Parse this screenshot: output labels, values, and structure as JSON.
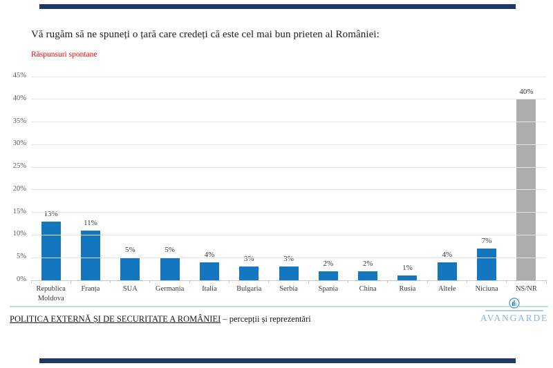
{
  "header": {
    "title": "Vă rugăm să ne spuneți o țară care credeți că este cel mai bun prieten al României:",
    "subtitle": "Răspunsuri spontane"
  },
  "chart_data": {
    "type": "bar",
    "title": "Vă rugăm să ne spuneți o țară care credeți că este cel mai bun prieten al României:",
    "subtitle": "Răspunsuri spontane",
    "categories": [
      "Republica Moldova",
      "Franța",
      "SUA",
      "Germania",
      "Italia",
      "Bulgaria",
      "Serbia",
      "Spania",
      "China",
      "Rusia",
      "Altele",
      "Niciuna",
      "NS/NR"
    ],
    "values": [
      13,
      11,
      5,
      5,
      4,
      3,
      3,
      2,
      2,
      1,
      4,
      7,
      40
    ],
    "data_labels": [
      "13%",
      "11%",
      "5%",
      "5%",
      "4%",
      "3%",
      "3%",
      "2%",
      "2%",
      "1%",
      "4%",
      "7%",
      "40%"
    ],
    "xlabel": "",
    "ylabel": "",
    "ylim": [
      0,
      45
    ],
    "yticks": [
      "0%",
      "5%",
      "10%",
      "15%",
      "20%",
      "25%",
      "30%",
      "35%",
      "40%",
      "45%"
    ],
    "grid": true,
    "legend": "none",
    "gray_category": "NS/NR"
  },
  "footer": {
    "report_title": "POLITICA EXTERNĂ ȘI DE SECURITATE A ROMÂNIEI",
    "report_subtitle": " – percepții și reprezentări",
    "logo_text": "AVANGARDE"
  },
  "colors": {
    "accent_navy": "#1F3864",
    "subtitle_red": "#FF0000",
    "bar_blue": "#1476BE",
    "bar_gray": "#ADADAD",
    "divider_blue": "#C3D8EA",
    "logo_blue": "#8AB4D8"
  }
}
